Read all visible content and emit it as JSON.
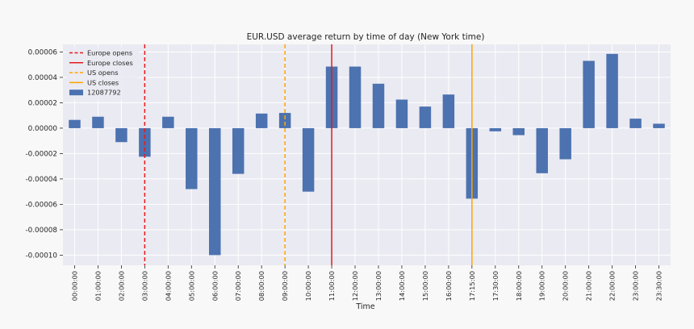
{
  "chart_data": {
    "type": "bar",
    "title": "EUR.USD average return by time of day (New York time)",
    "xlabel": "Time",
    "ylabel": "",
    "ylim": [
      -0.000108,
      6.6e-05
    ],
    "yticks": [
      "0.00006",
      "0.00004",
      "0.00002",
      "0.00000",
      "-0.00002",
      "-0.00004",
      "-0.00006",
      "-0.00008",
      "-0.00010"
    ],
    "ytick_values": [
      6e-05,
      4e-05,
      2e-05,
      0.0,
      -2e-05,
      -4e-05,
      -6e-05,
      -8e-05,
      -0.0001
    ],
    "grid": true,
    "legend_position": "top-left",
    "categories": [
      "00:00:00",
      "01:00:00",
      "02:00:00",
      "03:00:00",
      "04:00:00",
      "05:00:00",
      "06:00:00",
      "07:00:00",
      "08:00:00",
      "09:00:00",
      "10:00:00",
      "11:00:00",
      "12:00:00",
      "13:00:00",
      "14:00:00",
      "15:00:00",
      "16:00:00",
      "17:15:00",
      "17:30:00",
      "18:00:00",
      "19:00:00",
      "20:00:00",
      "21:00:00",
      "22:00:00",
      "23:00:00",
      "23:30:00"
    ],
    "series": [
      {
        "name": "12087792",
        "color": "#4c72b0",
        "values": [
          6.5e-06,
          9e-06,
          -1.1e-05,
          -2.25e-05,
          9e-06,
          -4.8e-05,
          -0.0001,
          -3.6e-05,
          1.15e-05,
          1.2e-05,
          -5e-05,
          4.85e-05,
          4.85e-05,
          3.5e-05,
          2.25e-05,
          1.7e-05,
          2.65e-05,
          -5.55e-05,
          -2.5e-06,
          -5.5e-06,
          -3.55e-05,
          -2.45e-05,
          5.3e-05,
          5.85e-05,
          7.5e-06,
          3.5e-06
        ]
      }
    ],
    "vlines": [
      {
        "name": "Europe opens",
        "category": "03:00:00",
        "color": "#e41a1c",
        "style": "dashed"
      },
      {
        "name": "Europe closes",
        "category": "11:00:00",
        "color": "#e41a1c",
        "style": "solid"
      },
      {
        "name": "US opens",
        "category": "09:00:00",
        "color": "#ffa500",
        "style": "dashed"
      },
      {
        "name": "US closes",
        "category": "17:15:00",
        "color": "#ffa500",
        "style": "solid"
      }
    ],
    "colors": {
      "plot_background": "#eaeaf2",
      "grid": "#ffffff",
      "page_background": "#f8f8f8"
    }
  }
}
